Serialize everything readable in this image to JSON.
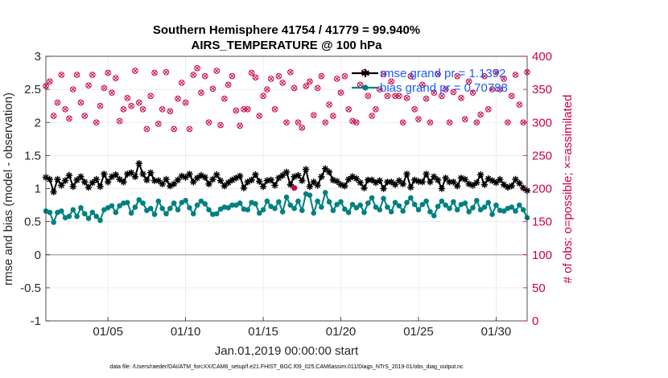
{
  "chart_data": {
    "type": "line",
    "title": "Southern Hemisphere 41754 / 41779 = 99.940%",
    "subtitle": "AIRS_TEMPERATURE @ 100 hPa",
    "xlabel": "Jan.01,2019 00:00:00 start",
    "ylabel": "rmse and bias (model - observation)",
    "y2label": "# of obs: o=possible; ×=assimilated",
    "footnote": "data file: /Users/raeder/DAI/ATM_forcXX/CAM6_setup/f.e21.FHIST_BGC.f09_025.CAM6assim.011/Diags_NTrS_2019-01/obs_diag_output.nc",
    "xlim": [
      1,
      32
    ],
    "ylim": [
      -1,
      3
    ],
    "y2lim": [
      0,
      400
    ],
    "grid": true,
    "legend_position": "top-right",
    "x_ticks": [
      5,
      10,
      15,
      20,
      25,
      30
    ],
    "x_tick_labels": [
      "01/05",
      "01/10",
      "01/15",
      "01/20",
      "01/25",
      "01/30"
    ],
    "y_ticks": [
      -1,
      -0.5,
      0,
      0.5,
      1,
      1.5,
      2,
      2.5,
      3
    ],
    "y_tick_labels": [
      "-1",
      "-0.5",
      "0",
      "0.5",
      "1",
      "1.5",
      "2",
      "2.5",
      "3"
    ],
    "y2_ticks": [
      0,
      50,
      100,
      150,
      200,
      250,
      300,
      350,
      400
    ],
    "y2_tick_labels": [
      "0",
      "50",
      "100",
      "150",
      "200",
      "250",
      "300",
      "350",
      "400"
    ],
    "colors": {
      "rmse": "#000000",
      "bias": "#008080",
      "obs": "#cc0044",
      "zero_line": "#b0b0b0",
      "legend_text": "#1a5cff"
    },
    "x_start": 1,
    "x_step": 0.25,
    "series": [
      {
        "name": "rmse grand pr = 1.1392",
        "axis": "left",
        "marker": "star",
        "values": [
          1.17,
          1.14,
          0.95,
          1.14,
          1.05,
          1.12,
          1.2,
          1.03,
          1.13,
          1.18,
          1.1,
          1.02,
          1.09,
          1.14,
          1.03,
          1.22,
          1.1,
          1.18,
          1.21,
          1.14,
          1.1,
          1.22,
          1.24,
          1.18,
          1.38,
          1.22,
          1.13,
          1.24,
          1.12,
          1.12,
          1.07,
          1.14,
          1.04,
          1.07,
          1.13,
          1.19,
          1.17,
          1.22,
          1.1,
          1.16,
          1.2,
          1.17,
          1.07,
          1.14,
          1.21,
          1.12,
          1.04,
          1.09,
          1.13,
          1.16,
          1.19,
          1.01,
          1.1,
          1.13,
          1.21,
          1.11,
          1.03,
          1.12,
          1.13,
          1.05,
          1.16,
          1.2,
          1.25,
          1.06,
          1.18,
          1.2,
          1.12,
          1.29,
          1.03,
          1.1,
          1.05,
          1.18,
          1.3,
          1.25,
          1.13,
          1.11,
          1.06,
          1.04,
          1.14,
          1.18,
          1.15,
          1.09,
          1.01,
          1.13,
          1.13,
          1.09,
          1.12,
          1.0,
          1.1,
          1.1,
          1.06,
          1.12,
          1.07,
          1.22,
          1.02,
          1.13,
          1.11,
          1.1,
          1.22,
          1.1,
          1.18,
          1.13,
          1.0,
          1.16,
          1.1,
          1.1,
          1.04,
          1.16,
          1.14,
          1.07,
          1.05,
          1.09,
          1.21,
          1.06,
          1.15,
          1.12,
          1.09,
          1.14,
          1.06,
          1.02,
          1.04,
          1.14,
          1.08,
          1.01,
          0.97
        ]
      },
      {
        "name": "bias grand pr = 0.70788",
        "axis": "left",
        "marker": "circle",
        "values": [
          0.66,
          0.64,
          0.49,
          0.64,
          0.66,
          0.56,
          0.58,
          0.68,
          0.58,
          0.71,
          0.62,
          0.55,
          0.64,
          0.58,
          0.52,
          0.68,
          0.71,
          0.74,
          0.64,
          0.74,
          0.78,
          0.79,
          0.63,
          0.72,
          0.83,
          0.78,
          0.67,
          0.7,
          0.61,
          0.81,
          0.7,
          0.62,
          0.7,
          0.78,
          0.68,
          0.79,
          0.82,
          0.71,
          0.62,
          0.75,
          0.81,
          0.77,
          0.68,
          0.61,
          0.62,
          0.69,
          0.72,
          0.71,
          0.75,
          0.75,
          0.78,
          0.69,
          0.68,
          0.79,
          0.77,
          0.63,
          0.68,
          0.81,
          0.73,
          0.7,
          0.8,
          0.65,
          0.87,
          0.75,
          0.7,
          0.81,
          0.67,
          0.92,
          0.9,
          0.63,
          0.81,
          0.72,
          0.94,
          0.8,
          0.67,
          0.76,
          0.8,
          0.69,
          0.64,
          0.76,
          0.71,
          0.75,
          0.64,
          0.78,
          0.86,
          0.72,
          0.68,
          0.85,
          0.72,
          0.65,
          0.79,
          0.74,
          0.66,
          0.79,
          0.86,
          0.76,
          0.68,
          0.76,
          0.81,
          0.65,
          0.59,
          0.73,
          0.81,
          0.75,
          0.7,
          0.8,
          0.68,
          0.76,
          0.78,
          0.65,
          0.71,
          0.82,
          0.68,
          0.72,
          0.79,
          0.61,
          0.75,
          0.67,
          0.66,
          0.7,
          0.72,
          0.66,
          0.75,
          0.68,
          0.56
        ]
      },
      {
        "name": "obs possible",
        "axis": "right",
        "marker": "circle-open",
        "values": [
          355,
          362,
          310,
          330,
          372,
          320,
          306,
          350,
          372,
          330,
          310,
          356,
          372,
          300,
          325,
          352,
          375,
          345,
          367,
          302,
          320,
          337,
          325,
          378,
          330,
          320,
          290,
          340,
          375,
          298,
          320,
          376,
          317,
          290,
          336,
          360,
          330,
          290,
          372,
          382,
          345,
          370,
          300,
          351,
          378,
          296,
          336,
          357,
          370,
          318,
          295,
          320,
          320,
          375,
          368,
          310,
          340,
          350,
          366,
          320,
          370,
          360,
          300,
          376,
          352,
          300,
          292,
          355,
          362,
          311,
          352,
          370,
          300,
          327,
          310,
          366,
          345,
          370,
          320,
          302,
          300,
          357,
          376,
          340,
          310,
          320,
          350,
          373,
          340,
          362,
          340,
          340,
          300,
          337,
          370,
          320,
          305,
          357,
          336,
          300,
          345,
          373,
          340,
          350,
          300,
          346,
          370,
          337,
          305,
          362,
          345,
          300,
          312,
          370,
          320,
          350,
          376,
          350,
          366,
          300,
          340,
          372,
          327,
          300,
          376
        ]
      },
      {
        "name": "obs assimilated",
        "axis": "right",
        "marker": "x",
        "values": [
          355,
          362,
          310,
          330,
          372,
          320,
          306,
          350,
          372,
          330,
          310,
          356,
          372,
          300,
          325,
          352,
          375,
          345,
          367,
          302,
          320,
          337,
          325,
          378,
          330,
          320,
          290,
          340,
          375,
          298,
          320,
          376,
          317,
          290,
          336,
          360,
          330,
          290,
          372,
          382,
          345,
          370,
          300,
          351,
          378,
          296,
          336,
          357,
          370,
          318,
          295,
          320,
          320,
          375,
          368,
          310,
          340,
          350,
          366,
          320,
          370,
          360,
          300,
          376,
          352,
          300,
          292,
          355,
          362,
          311,
          352,
          370,
          300,
          327,
          310,
          366,
          345,
          370,
          320,
          302,
          300,
          357,
          376,
          340,
          310,
          320,
          350,
          373,
          340,
          362,
          340,
          340,
          300,
          337,
          370,
          320,
          305,
          357,
          336,
          300,
          345,
          373,
          340,
          350,
          300,
          346,
          370,
          337,
          305,
          362,
          345,
          300,
          312,
          370,
          320,
          350,
          376,
          350,
          366,
          300,
          340,
          372,
          327,
          300,
          376
        ]
      }
    ],
    "highlight_point": {
      "x": 17,
      "y": 1.01
    }
  }
}
